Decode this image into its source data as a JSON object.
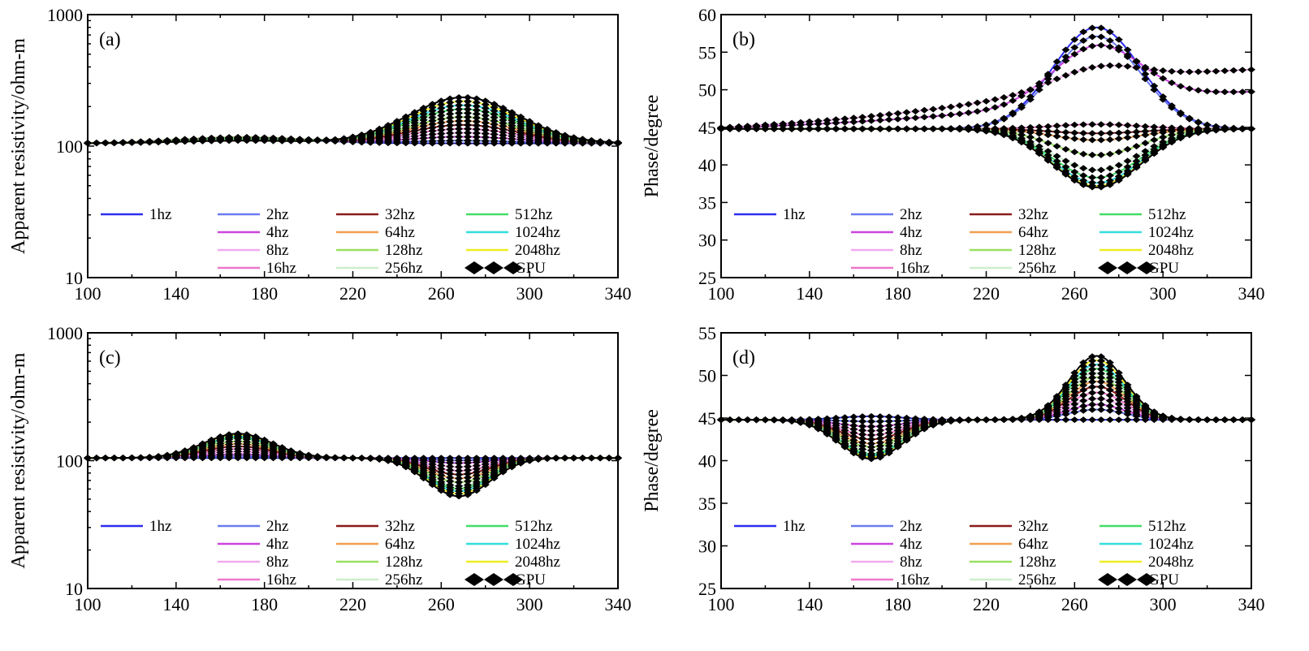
{
  "figure": {
    "background": "#ffffff"
  },
  "legend_entries": [
    {
      "label": "1hz",
      "color": "#2d2df0"
    },
    {
      "label": "2hz",
      "color": "#6b7af0"
    },
    {
      "label": "4hz",
      "color": "#cc44dd"
    },
    {
      "label": "8hz",
      "color": "#f2aaf0"
    },
    {
      "label": "16hz",
      "color": "#ee77cc"
    },
    {
      "label": "32hz",
      "color": "#8b1a1a"
    },
    {
      "label": "64hz",
      "color": "#f0a050"
    },
    {
      "label": "128hz",
      "color": "#99e060"
    },
    {
      "label": "256hz",
      "color": "#cceecc"
    },
    {
      "label": "512hz",
      "color": "#44dd66"
    },
    {
      "label": "1024hz",
      "color": "#33dddd"
    },
    {
      "label": "2048hz",
      "color": "#eeee22"
    },
    {
      "label": "GPU",
      "color": "#000000",
      "marker": "diamond"
    }
  ],
  "chart_data": [
    {
      "id": "a",
      "panel_label": "(a)",
      "type": "line",
      "scale": "log",
      "ylabel": "Apparent resistivity/ohm-m",
      "xlim": [
        100,
        340
      ],
      "ylim": [
        10,
        1000
      ],
      "xticks": [
        100,
        140,
        180,
        220,
        260,
        300,
        340
      ],
      "yticks": [
        10,
        100,
        1000
      ],
      "ytick_labels": [
        "10",
        "100",
        "1000"
      ],
      "series_model": {
        "base": 105,
        "components": [
          {
            "center": 270,
            "width": 35,
            "amps": [
              0,
              0.02,
              0.05,
              0.08,
              0.11,
              0.14,
              0.17,
              0.2,
              0.23,
              0.26,
              0.29,
              0.32,
              0.35
            ]
          },
          {
            "center": 170,
            "width": 40,
            "amps": [
              0.045,
              0.045,
              0.045,
              0.045,
              0.045,
              0.045,
              0.045,
              0.045,
              0.04,
              0.035,
              0.03,
              0.025,
              0.02
            ]
          }
        ],
        "slopes": [
          0,
          0,
          0,
          0,
          0,
          0,
          0,
          0,
          0,
          0,
          0,
          0,
          0
        ]
      }
    },
    {
      "id": "b",
      "panel_label": "(b)",
      "type": "line",
      "scale": "linear",
      "ylabel": "Phase/degree",
      "xlim": [
        100,
        340
      ],
      "ylim": [
        25,
        60
      ],
      "xticks": [
        100,
        140,
        180,
        220,
        260,
        300,
        340
      ],
      "yticks": [
        25,
        30,
        35,
        40,
        45,
        50,
        55,
        60
      ],
      "ytick_labels": [
        "25",
        "30",
        "35",
        "40",
        "45",
        "50",
        "55",
        "60"
      ],
      "series_model": {
        "base": 44.8,
        "components": [
          {
            "center": 270,
            "width": 28,
            "amps": [
              13.5,
              12.3,
              7.5,
              2.5,
              0.6,
              -0.6,
              -1.5,
              -3.5,
              -5.5,
              -6.5,
              -7.2,
              -7.6,
              -7.8
            ]
          },
          {
            "center": 340,
            "width": 130,
            "amps": [
              0,
              0,
              3,
              5,
              0,
              0,
              0,
              0,
              0,
              0,
              0,
              0,
              0
            ]
          }
        ],
        "slopes": [
          0,
          0,
          0.008,
          0.012,
          0,
          0,
          0,
          0,
          0,
          0,
          0,
          0,
          0
        ]
      }
    },
    {
      "id": "c",
      "panel_label": "(c)",
      "type": "line",
      "scale": "log",
      "ylabel": "Apparent resistivity/ohm-m",
      "xlim": [
        100,
        340
      ],
      "ylim": [
        10,
        1000
      ],
      "xticks": [
        100,
        140,
        180,
        220,
        260,
        300,
        340
      ],
      "yticks": [
        10,
        100,
        1000
      ],
      "ytick_labels": [
        "10",
        "100",
        "1000"
      ],
      "series_model": {
        "base": 105,
        "components": [
          {
            "center": 168,
            "width": 22,
            "amps": [
              0,
              0.015,
              0.03,
              0.05,
              0.07,
              0.09,
              0.11,
              0.13,
              0.15,
              0.16,
              0.17,
              0.18,
              0.19
            ]
          },
          {
            "center": 268,
            "width": 20,
            "amps": [
              0,
              -0.02,
              -0.04,
              -0.07,
              -0.1,
              -0.13,
              -0.16,
              -0.19,
              -0.22,
              -0.24,
              -0.26,
              -0.28,
              -0.3
            ]
          }
        ],
        "slopes": [
          0,
          0,
          0,
          0,
          0,
          0,
          0,
          0,
          0,
          0,
          0,
          0,
          0
        ]
      }
    },
    {
      "id": "d",
      "panel_label": "(d)",
      "type": "line",
      "scale": "linear",
      "ylabel": "Phase/degree",
      "xlim": [
        100,
        340
      ],
      "ylim": [
        25,
        55
      ],
      "xticks": [
        100,
        140,
        180,
        220,
        260,
        300,
        340
      ],
      "yticks": [
        25,
        30,
        35,
        40,
        45,
        50,
        55
      ],
      "ytick_labels": [
        "25",
        "30",
        "35",
        "40",
        "45",
        "50",
        "55"
      ],
      "series_model": {
        "base": 44.8,
        "components": [
          {
            "center": 168,
            "width": 20,
            "amps": [
              0.4,
              -0.2,
              -0.8,
              -1.3,
              -1.8,
              -2.3,
              -2.8,
              -3.2,
              -3.6,
              -4.0,
              -4.2,
              -4.4,
              -4.6
            ]
          },
          {
            "center": 270,
            "width": 18,
            "amps": [
              0,
              1.2,
              1.8,
              2.5,
              3.2,
              3.9,
              4.5,
              5.0,
              5.5,
              6.0,
              6.5,
              7.0,
              7.5
            ]
          }
        ],
        "slopes": [
          0,
          0,
          0,
          0,
          0,
          0,
          0,
          0,
          0,
          0,
          0,
          0,
          0
        ]
      }
    }
  ]
}
